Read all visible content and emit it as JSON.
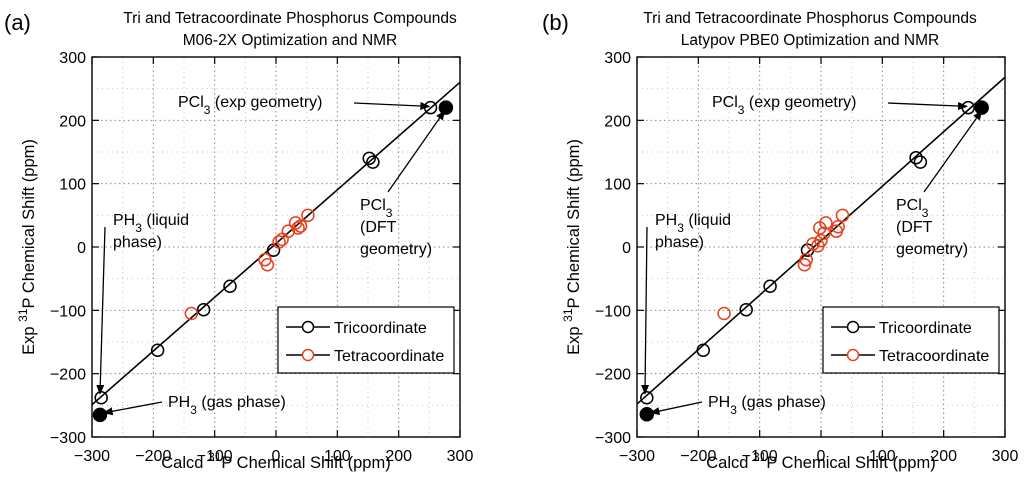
{
  "chart_data": [
    {
      "type": "scatter",
      "panel_label": "(a)",
      "title": "Tri and Tetracoordinate Phosphorus Compounds",
      "subtitle": "M06-2X Optimization and NMR",
      "xlabel": {
        "pre": "Calcd ",
        "sup": "31",
        "post": "P Chemical Shift (ppm)"
      },
      "ylabel": {
        "pre": "Exp ",
        "sup": "31",
        "post": "P Chemical Shift (ppm)"
      },
      "xlim": [
        -300,
        300
      ],
      "ylim": [
        -300,
        300
      ],
      "xticks": [
        -300,
        -200,
        -100,
        0,
        100,
        200,
        300
      ],
      "yticks": [
        -300,
        -200,
        -100,
        0,
        100,
        200,
        300
      ],
      "xtick_labels": [
        "−300",
        "−200",
        "−100",
        "0",
        "100",
        "200",
        "300"
      ],
      "ytick_labels": [
        "−300",
        "−200",
        "−100",
        "0",
        "100",
        "200",
        "300"
      ],
      "grid": true,
      "fit_line": {
        "x": [
          -300,
          300
        ],
        "y": [
          -249,
          260
        ]
      },
      "series": [
        {
          "name": "Tricoordinate",
          "color": "#000000",
          "marker": "open-circle",
          "points": [
            [
              -285,
              -238
            ],
            [
              -193,
              -163
            ],
            [
              -118,
              -99
            ],
            [
              -75,
              -62
            ],
            [
              -4,
              -5
            ],
            [
              152,
              140
            ],
            [
              158,
              134
            ],
            [
              252,
              220
            ]
          ]
        },
        {
          "name": "Tetracoordinate",
          "color": "#e8401c",
          "marker": "open-circle",
          "points": [
            [
              -138,
              -105
            ],
            [
              -18,
              -20
            ],
            [
              -14,
              -28
            ],
            [
              5,
              8
            ],
            [
              10,
              12
            ],
            [
              20,
              25
            ],
            [
              32,
              38
            ],
            [
              36,
              30
            ],
            [
              52,
              50
            ],
            [
              40,
              33
            ]
          ]
        },
        {
          "name": "",
          "color": "#000000",
          "marker": "filled-circle",
          "points": [
            [
              -287,
              -265
            ],
            [
              277,
              220
            ]
          ]
        }
      ],
      "legend": {
        "placement": "bottom-right",
        "entries": [
          "Tricoordinate",
          "Tetracoordinate"
        ]
      },
      "annotations": [
        {
          "lines": [
            [
              "PCl",
              "3",
              " (exp geometry)"
            ]
          ],
          "arrow_to": [
            250,
            222
          ]
        },
        {
          "lines": [
            [
              "PCl",
              "3",
              ""
            ],
            [
              "(DFT",
              "",
              ""
            ],
            [
              "geometry)",
              "",
              ""
            ]
          ],
          "arrow_to": [
            275,
            215
          ]
        },
        {
          "lines": [
            [
              "PH",
              "3",
              " (liquid"
            ],
            [
              "phase)",
              "",
              ""
            ]
          ],
          "arrow_to": [
            -287,
            -232
          ]
        },
        {
          "lines": [
            [
              "PH",
              "3",
              " (gas phase)"
            ]
          ],
          "arrow_to": [
            -281,
            -262
          ]
        }
      ]
    },
    {
      "type": "scatter",
      "panel_label": "(b)",
      "title": "Tri and Tetracoordinate Phosphorus Compounds",
      "subtitle": "Latypov PBE0 Optimization and NMR",
      "xlabel": {
        "pre": "Calcd ",
        "sup": "31",
        "post": "P Chemical Shift (ppm)"
      },
      "ylabel": {
        "pre": "Exp ",
        "sup": "31",
        "post": "P Chemical Shift (ppm)"
      },
      "xlim": [
        -300,
        300
      ],
      "ylim": [
        -300,
        300
      ],
      "xticks": [
        -300,
        -200,
        -100,
        0,
        100,
        200,
        300
      ],
      "yticks": [
        -300,
        -200,
        -100,
        0,
        100,
        200,
        300
      ],
      "xtick_labels": [
        "−300",
        "−200",
        "−100",
        "0",
        "100",
        "200",
        "300"
      ],
      "ytick_labels": [
        "−300",
        "−200",
        "−100",
        "0",
        "100",
        "200",
        "300"
      ],
      "grid": true,
      "fit_line": {
        "x": [
          -300,
          300
        ],
        "y": [
          -248,
          268
        ]
      },
      "series": [
        {
          "name": "Tricoordinate",
          "color": "#000000",
          "marker": "open-circle",
          "points": [
            [
              -284,
              -238
            ],
            [
              -192,
              -163
            ],
            [
              -122,
              -99
            ],
            [
              -83,
              -62
            ],
            [
              -22,
              -5
            ],
            [
              155,
              141
            ],
            [
              162,
              134
            ],
            [
              240,
              220
            ]
          ]
        },
        {
          "name": "Tetracoordinate",
          "color": "#e8401c",
          "marker": "open-circle",
          "points": [
            [
              -158,
              -105
            ],
            [
              -27,
              -28
            ],
            [
              -24,
              -20
            ],
            [
              -13,
              5
            ],
            [
              -5,
              2
            ],
            [
              0,
              10
            ],
            [
              5,
              22
            ],
            [
              8,
              38
            ],
            [
              25,
              25
            ],
            [
              28,
              32
            ],
            [
              35,
              50
            ],
            [
              -2,
              30
            ]
          ]
        },
        {
          "name": "",
          "color": "#000000",
          "marker": "filled-circle",
          "points": [
            [
              -284,
              -264
            ],
            [
              262,
              220
            ]
          ]
        }
      ],
      "legend": {
        "placement": "bottom-right",
        "entries": [
          "Tricoordinate",
          "Tetracoordinate"
        ]
      },
      "annotations": [
        {
          "lines": [
            [
              "PCl",
              "3",
              " (exp geometry)"
            ]
          ],
          "arrow_to": [
            238,
            222
          ]
        },
        {
          "lines": [
            [
              "PCl",
              "3",
              ""
            ],
            [
              "(DFT",
              "",
              ""
            ],
            [
              "geometry)",
              "",
              ""
            ]
          ],
          "arrow_to": [
            262,
            215
          ]
        },
        {
          "lines": [
            [
              "PH",
              "3",
              " (liquid"
            ],
            [
              "phase)",
              "",
              ""
            ]
          ],
          "arrow_to": [
            -287,
            -232
          ]
        },
        {
          "lines": [
            [
              "PH",
              "3",
              " (gas phase)"
            ]
          ],
          "arrow_to": [
            -278,
            -262
          ]
        }
      ]
    }
  ]
}
